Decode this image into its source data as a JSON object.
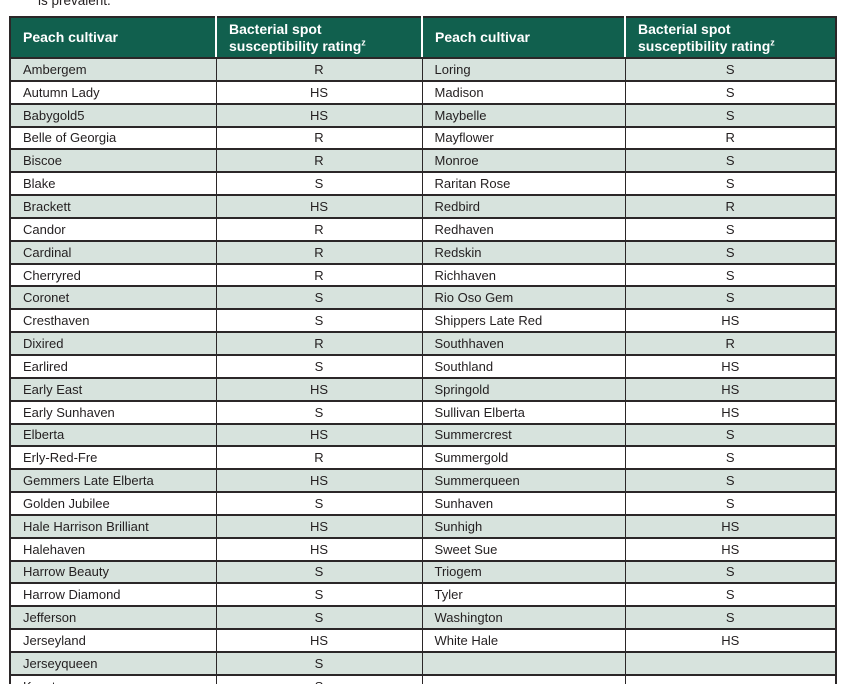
{
  "intro": {
    "text": "is prevalent."
  },
  "colors": {
    "header_bg": "#11604e",
    "row_shaded": "#d7e3dd",
    "border": "#2b2728",
    "body_text": "#231f20",
    "header_text": "#ffffff"
  },
  "table": {
    "header_cultivar": "Peach cultivar",
    "header_rating": "Bacterial spot susceptibility rating",
    "header_rating_sup": "z",
    "rows": [
      [
        "Ambergem",
        "R",
        "Loring",
        "S"
      ],
      [
        "Autumn Lady",
        "HS",
        "Madison",
        "S"
      ],
      [
        "Babygold5",
        "HS",
        "Maybelle",
        "S"
      ],
      [
        "Belle of Georgia",
        "R",
        "Mayflower",
        "R"
      ],
      [
        "Biscoe",
        "R",
        "Monroe",
        "S"
      ],
      [
        "Blake",
        "S",
        "Raritan Rose",
        "S"
      ],
      [
        "Brackett",
        "HS",
        "Redbird",
        "R"
      ],
      [
        "Candor",
        "R",
        "Redhaven",
        "S"
      ],
      [
        "Cardinal",
        "R",
        "Redskin",
        "S"
      ],
      [
        "Cherryred",
        "R",
        "Richhaven",
        "S"
      ],
      [
        "Coronet",
        "S",
        "Rio Oso Gem",
        "S"
      ],
      [
        "Cresthaven",
        "S",
        "Shippers Late Red",
        "HS"
      ],
      [
        "Dixired",
        "R",
        "Southhaven",
        "R"
      ],
      [
        "Earlired",
        "S",
        "Southland",
        "HS"
      ],
      [
        "Early East",
        "HS",
        "Springold",
        "HS"
      ],
      [
        "Early Sunhaven",
        "S",
        "Sullivan Elberta",
        "HS"
      ],
      [
        "Elberta",
        "HS",
        "Summercrest",
        "S"
      ],
      [
        "Erly-Red-Fre",
        "R",
        "Summergold",
        "S"
      ],
      [
        "Gemmers Late Elberta",
        "HS",
        "Summerqueen",
        "S"
      ],
      [
        "Golden Jubilee",
        "S",
        "Sunhaven",
        "S"
      ],
      [
        "Hale Harrison Brilliant",
        "HS",
        "Sunhigh",
        "HS"
      ],
      [
        "Halehaven",
        "HS",
        "Sweet Sue",
        "HS"
      ],
      [
        "Harrow Beauty",
        "S",
        "Triogem",
        "S"
      ],
      [
        "Harrow Diamond",
        "S",
        "Tyler",
        "S"
      ],
      [
        "Jefferson",
        "S",
        "Washington",
        "S"
      ],
      [
        "Jerseyland",
        "HS",
        "White Hale",
        "HS"
      ],
      [
        "Jerseyqueen",
        "S",
        "",
        ""
      ],
      [
        "Keystone",
        "S",
        "",
        ""
      ]
    ]
  }
}
